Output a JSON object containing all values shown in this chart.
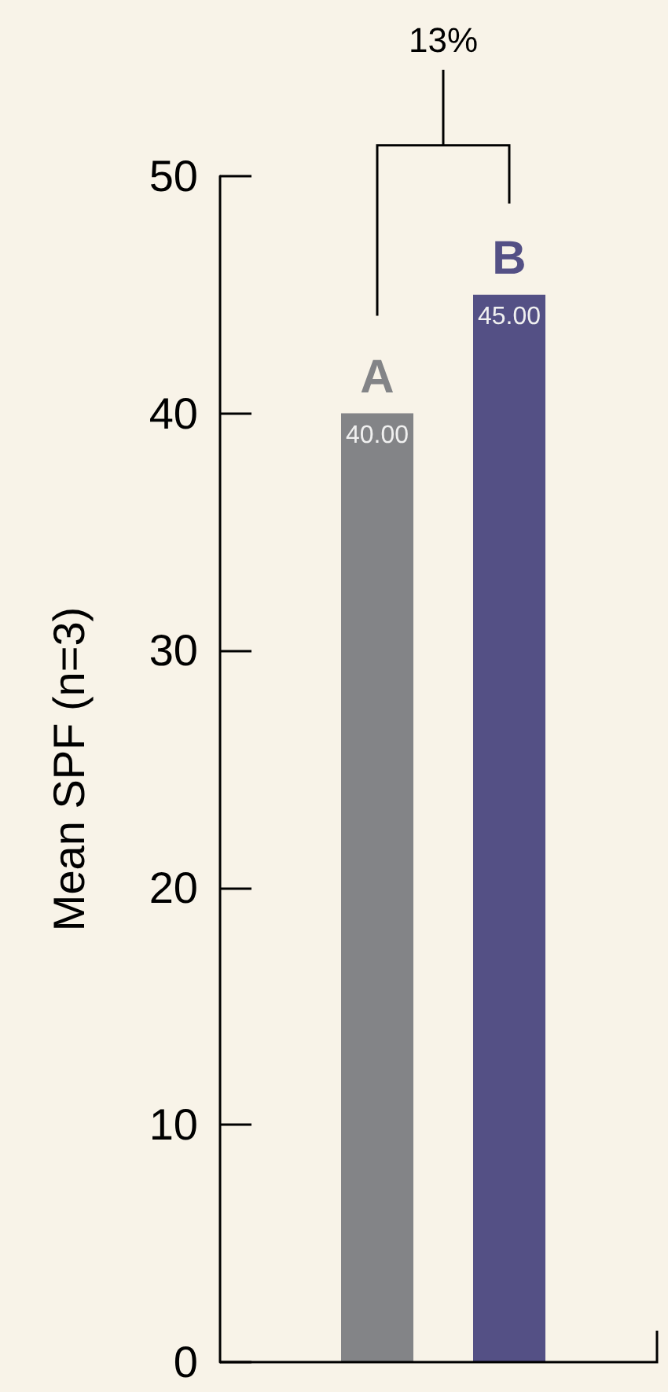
{
  "chart_data": {
    "type": "bar",
    "ylabel": "Mean SPF (n=3)",
    "categories": [
      "A",
      "B"
    ],
    "values": [
      40,
      45
    ],
    "colors": [
      "#838487",
      "#545085"
    ],
    "value_labels": [
      "40.00",
      "45.00"
    ],
    "ylim": [
      0,
      50
    ],
    "yticks": [
      0,
      10,
      20,
      30,
      40,
      50
    ],
    "grid": false,
    "annotations": [
      "13%"
    ]
  }
}
